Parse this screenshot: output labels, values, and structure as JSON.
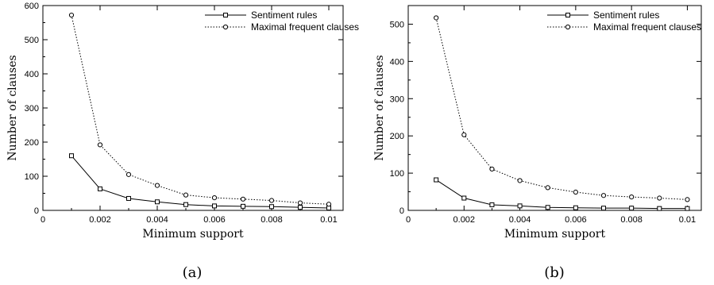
{
  "chart_data": [
    {
      "type": "line",
      "caption": "(a)",
      "xlabel": "Minimum support",
      "ylabel": "Number of clauses",
      "xlim": [
        0,
        0.0105
      ],
      "ylim": [
        0,
        600
      ],
      "xticks": [
        0,
        0.002,
        0.004,
        0.006,
        0.008,
        0.01
      ],
      "xtick_labels": [
        "0",
        "0.002",
        "0.004",
        "0.006",
        "0.008",
        "0.01"
      ],
      "yticks": [
        0,
        100,
        200,
        300,
        400,
        500,
        600
      ],
      "ytick_labels": [
        "0",
        "100",
        "200",
        "300",
        "400",
        "500",
        "600"
      ],
      "legend_position": "top-right",
      "grid": false,
      "x": [
        0.001,
        0.002,
        0.003,
        0.004,
        0.005,
        0.006,
        0.007,
        0.008,
        0.009,
        0.01
      ],
      "series": [
        {
          "name": "Sentiment rules",
          "style": "solid",
          "marker": "square",
          "values": [
            160,
            63,
            35,
            25,
            17,
            13,
            12,
            11,
            9,
            7
          ]
        },
        {
          "name": "Maximal frequent clauses",
          "style": "dotted",
          "marker": "circle",
          "values": [
            572,
            192,
            105,
            73,
            45,
            37,
            33,
            29,
            22,
            18
          ]
        }
      ]
    },
    {
      "type": "line",
      "caption": "(b)",
      "xlabel": "Minimum support",
      "ylabel": "Number of clauses",
      "xlim": [
        0,
        0.0105
      ],
      "ylim": [
        0,
        550
      ],
      "xticks": [
        0,
        0.002,
        0.004,
        0.006,
        0.008,
        0.01
      ],
      "xtick_labels": [
        "0",
        "0.002",
        "0.004",
        "0.006",
        "0.008",
        "0.01"
      ],
      "yticks": [
        0,
        100,
        200,
        300,
        400,
        500
      ],
      "ytick_labels": [
        "0",
        "100",
        "200",
        "300",
        "400",
        "500"
      ],
      "legend_position": "top-right",
      "grid": false,
      "x": [
        0.001,
        0.002,
        0.003,
        0.004,
        0.005,
        0.006,
        0.007,
        0.008,
        0.009,
        0.01
      ],
      "series": [
        {
          "name": "Sentiment rules",
          "style": "solid",
          "marker": "square",
          "values": [
            82,
            33,
            15,
            12,
            8,
            7,
            6,
            6,
            5,
            5
          ]
        },
        {
          "name": "Maximal frequent clauses",
          "style": "dotted",
          "marker": "circle",
          "values": [
            517,
            203,
            111,
            80,
            61,
            49,
            40,
            36,
            33,
            29
          ]
        }
      ]
    }
  ]
}
